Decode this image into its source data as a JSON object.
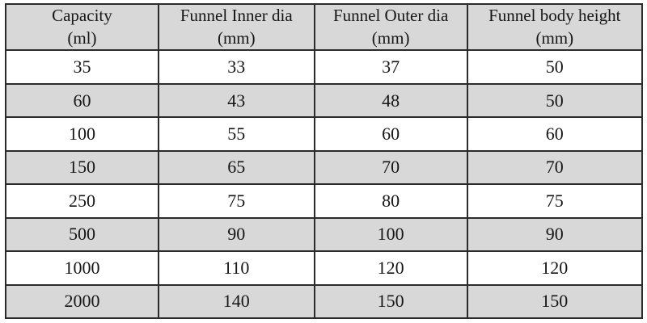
{
  "colors": {
    "page_bg": "#ffffff",
    "header_bg": "#d8d8d8",
    "row_bg": "#ffffff",
    "row_alt_bg": "#d8d8d8",
    "border": "#2b2b2b",
    "text": "#161616"
  },
  "chart_data": {
    "type": "table",
    "columns": [
      {
        "name": "Capacity",
        "unit": "(ml)"
      },
      {
        "name": "Funnel Inner dia",
        "unit": "(mm)"
      },
      {
        "name": "Funnel Outer dia",
        "unit": "(mm)"
      },
      {
        "name": "Funnel body height",
        "unit": "(mm)"
      }
    ],
    "rows": [
      [
        35,
        33,
        37,
        50
      ],
      [
        60,
        43,
        48,
        50
      ],
      [
        100,
        55,
        60,
        60
      ],
      [
        150,
        65,
        70,
        70
      ],
      [
        250,
        75,
        80,
        75
      ],
      [
        500,
        90,
        100,
        90
      ],
      [
        1000,
        110,
        120,
        120
      ],
      [
        2000,
        140,
        150,
        150
      ]
    ],
    "layout": {
      "striped": true,
      "grid": true
    }
  }
}
